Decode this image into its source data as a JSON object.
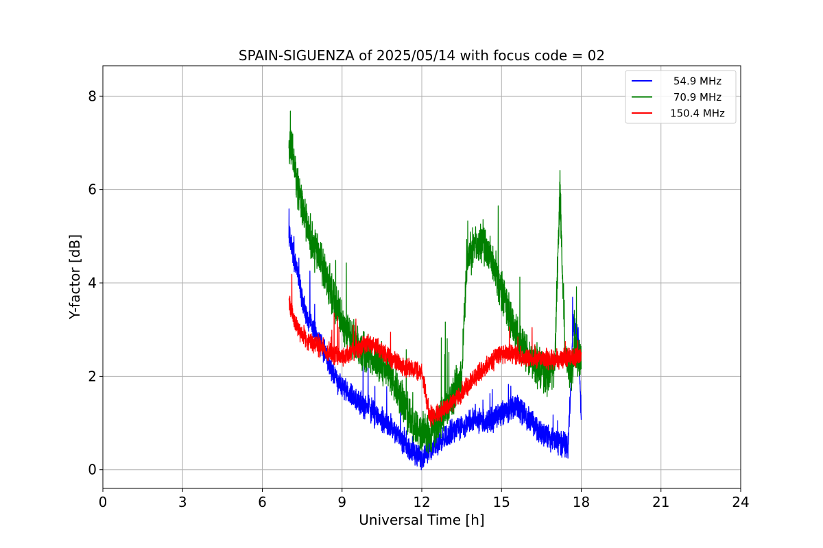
{
  "chart_data": {
    "type": "line",
    "title": "SPAIN-SIGUENZA of 2025/05/14 with focus code = 02",
    "xlabel": "Universal Time [h]",
    "ylabel": "Y-factor [dB]",
    "xlim": [
      0,
      24
    ],
    "ylim": [
      -0.4,
      8.65
    ],
    "xticks": [
      0,
      3,
      6,
      9,
      12,
      15,
      18,
      21,
      24
    ],
    "yticks": [
      0,
      2,
      4,
      6,
      8
    ],
    "grid": true,
    "legend_position": "top-right",
    "series": [
      {
        "name": "54.9 MHz",
        "color": "#0000ff",
        "x": [
          7.0,
          7.1,
          7.2,
          7.35,
          7.5,
          7.7,
          7.9,
          8.1,
          8.3,
          8.5,
          8.7,
          9.0,
          9.3,
          9.6,
          9.9,
          10.2,
          10.5,
          10.8,
          11.1,
          11.4,
          11.7,
          12.0,
          12.3,
          12.6,
          12.9,
          13.2,
          13.5,
          13.8,
          14.1,
          14.4,
          14.7,
          15.0,
          15.3,
          15.6,
          15.9,
          16.2,
          16.5,
          16.8,
          17.1,
          17.3,
          17.5,
          17.7,
          17.9,
          18.0
        ],
        "y": [
          5.0,
          4.9,
          4.5,
          4.2,
          3.6,
          3.2,
          3.0,
          2.8,
          2.6,
          2.3,
          2.0,
          1.8,
          1.6,
          1.45,
          1.35,
          1.2,
          1.05,
          0.95,
          0.75,
          0.55,
          0.4,
          0.25,
          0.45,
          0.55,
          0.7,
          0.85,
          0.95,
          1.0,
          1.05,
          1.0,
          1.1,
          1.2,
          1.3,
          1.35,
          1.15,
          0.95,
          0.8,
          0.7,
          0.6,
          0.55,
          0.5,
          3.1,
          2.8,
          1.2
        ]
      },
      {
        "name": "70.9 MHz",
        "color": "#008000",
        "x": [
          7.0,
          7.1,
          7.2,
          7.35,
          7.5,
          7.7,
          7.9,
          8.1,
          8.3,
          8.5,
          8.7,
          9.0,
          9.3,
          9.6,
          9.9,
          10.2,
          10.5,
          10.8,
          11.1,
          11.4,
          11.7,
          12.0,
          12.3,
          12.6,
          12.9,
          13.2,
          13.5,
          13.7,
          13.9,
          14.1,
          14.3,
          14.6,
          14.9,
          15.2,
          15.5,
          15.8,
          16.1,
          16.4,
          16.7,
          17.0,
          17.2,
          17.4,
          17.6,
          17.8,
          18.0
        ],
        "y": [
          6.8,
          7.0,
          6.5,
          6.0,
          5.6,
          5.2,
          4.8,
          4.6,
          4.3,
          4.0,
          3.6,
          3.2,
          2.9,
          2.7,
          2.5,
          2.4,
          2.3,
          2.1,
          1.7,
          1.3,
          1.0,
          0.8,
          0.7,
          1.0,
          1.3,
          1.6,
          2.0,
          4.5,
          4.7,
          4.8,
          4.9,
          4.5,
          4.0,
          3.5,
          3.0,
          2.6,
          2.4,
          2.2,
          2.0,
          2.2,
          6.0,
          2.4,
          2.1,
          2.6,
          2.3
        ]
      },
      {
        "name": "150.4 MHz",
        "color": "#ff0000",
        "x": [
          7.0,
          7.1,
          7.2,
          7.35,
          7.5,
          7.7,
          7.9,
          8.1,
          8.3,
          8.5,
          8.7,
          9.0,
          9.3,
          9.6,
          9.9,
          10.2,
          10.5,
          10.8,
          11.1,
          11.4,
          11.7,
          12.0,
          12.3,
          12.6,
          12.9,
          13.2,
          13.5,
          13.8,
          14.1,
          14.4,
          14.7,
          15.0,
          15.3,
          15.6,
          15.9,
          16.2,
          16.5,
          16.8,
          17.1,
          17.4,
          17.7,
          18.0
        ],
        "y": [
          3.6,
          3.4,
          3.2,
          3.0,
          2.9,
          2.8,
          2.7,
          2.65,
          2.6,
          2.5,
          2.45,
          2.45,
          2.5,
          2.6,
          2.7,
          2.65,
          2.55,
          2.4,
          2.3,
          2.2,
          2.15,
          2.1,
          1.15,
          1.2,
          1.3,
          1.45,
          1.65,
          1.85,
          2.05,
          2.2,
          2.35,
          2.5,
          2.5,
          2.45,
          2.4,
          2.35,
          2.4,
          2.35,
          2.35,
          2.4,
          2.4,
          2.45
        ]
      }
    ]
  }
}
